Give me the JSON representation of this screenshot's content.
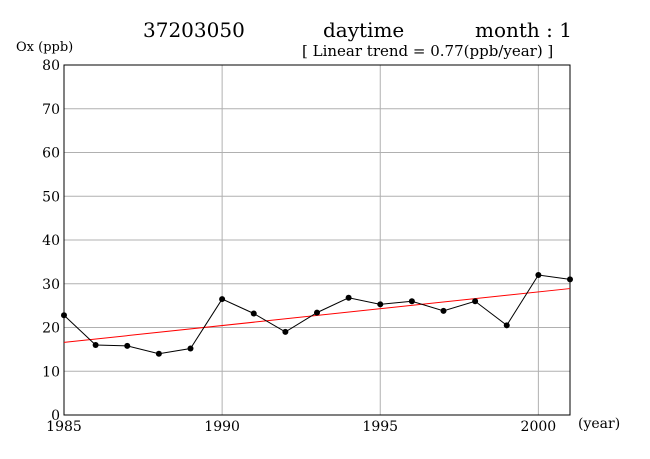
{
  "header": {
    "station": "37203050",
    "period": "daytime",
    "month_label": "month : 1",
    "trend_text": "[ Linear trend = 0.77(ppb/year) ]"
  },
  "chart_data": {
    "type": "line",
    "title": "37203050",
    "ylabel": "Ox (ppb)",
    "xlabel": "(year)",
    "xlim": [
      1985,
      2001
    ],
    "ylim": [
      0,
      80
    ],
    "x_ticks": [
      1985,
      1990,
      1995,
      2000
    ],
    "y_ticks": [
      0,
      10,
      20,
      30,
      40,
      50,
      60,
      70,
      80
    ],
    "grid": true,
    "series": [
      {
        "x": [
          1985,
          1986,
          1987,
          1988,
          1989,
          1990,
          1991,
          1992,
          1993,
          1994,
          1995,
          1996,
          1997,
          1998,
          1999,
          2000,
          2001
        ],
        "values": [
          22.8,
          16.0,
          15.8,
          14.0,
          15.2,
          26.5,
          23.2,
          19.0,
          23.4,
          26.8,
          25.3,
          26.0,
          23.8,
          26.0,
          20.5,
          32.0,
          31.0
        ],
        "color": "#000000"
      }
    ],
    "trend": {
      "x": [
        1985,
        2001
      ],
      "y": [
        16.6,
        28.9
      ],
      "color": "#ff0000",
      "slope_ppb_per_year": 0.77
    }
  }
}
